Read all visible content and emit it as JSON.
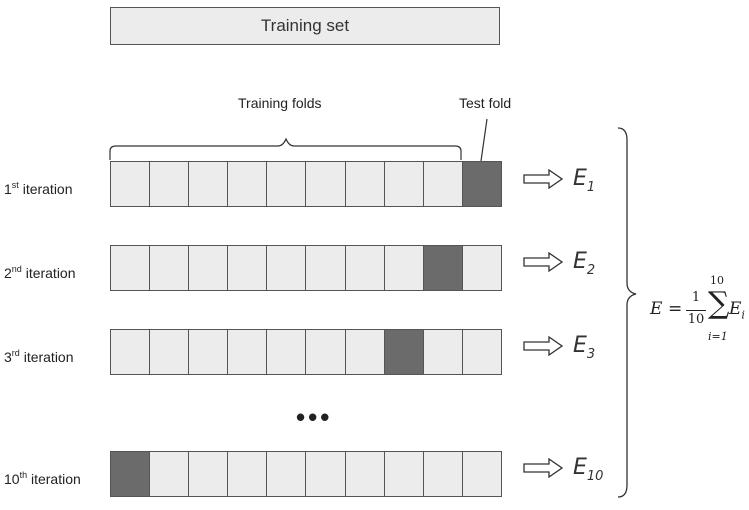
{
  "title": "Training set",
  "training_folds_label": "Training folds",
  "test_fold_label": "Test fold",
  "ellipsis": "•••",
  "num_folds": 10,
  "iterations": [
    {
      "num": "1",
      "sup": "st",
      "word": " iteration",
      "test_index": 9,
      "e_letter": "E",
      "e_sub": "1"
    },
    {
      "num": "2",
      "sup": "nd",
      "word": " iteration",
      "test_index": 8,
      "e_letter": "E",
      "e_sub": "2"
    },
    {
      "num": "3",
      "sup": "rd",
      "word": " iteration",
      "test_index": 7,
      "e_letter": "E",
      "e_sub": "3"
    },
    {
      "num": "10",
      "sup": "th",
      "word": " iteration",
      "test_index": 0,
      "e_letter": "E",
      "e_sub": "10"
    }
  ],
  "formula": {
    "lhs": "E",
    "eq": "=",
    "numerator": "1",
    "denominator": "10",
    "sigma": "∑",
    "upper": "10",
    "lower": "i=1",
    "term": "E",
    "term_sub": "i"
  },
  "colors": {
    "fold_fill": "#ececec",
    "test_fill": "#6b6b6b",
    "stroke": "#555555"
  }
}
